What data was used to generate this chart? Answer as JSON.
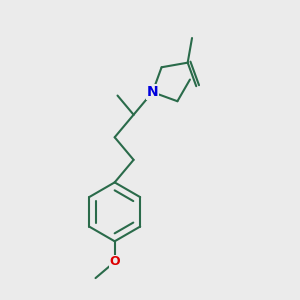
{
  "background_color": "#ebebeb",
  "bond_color": "#2a6b4a",
  "N_color": "#0000dd",
  "O_color": "#dd0000",
  "line_width": 1.5,
  "fig_size": [
    3.0,
    3.0
  ],
  "dpi": 100
}
